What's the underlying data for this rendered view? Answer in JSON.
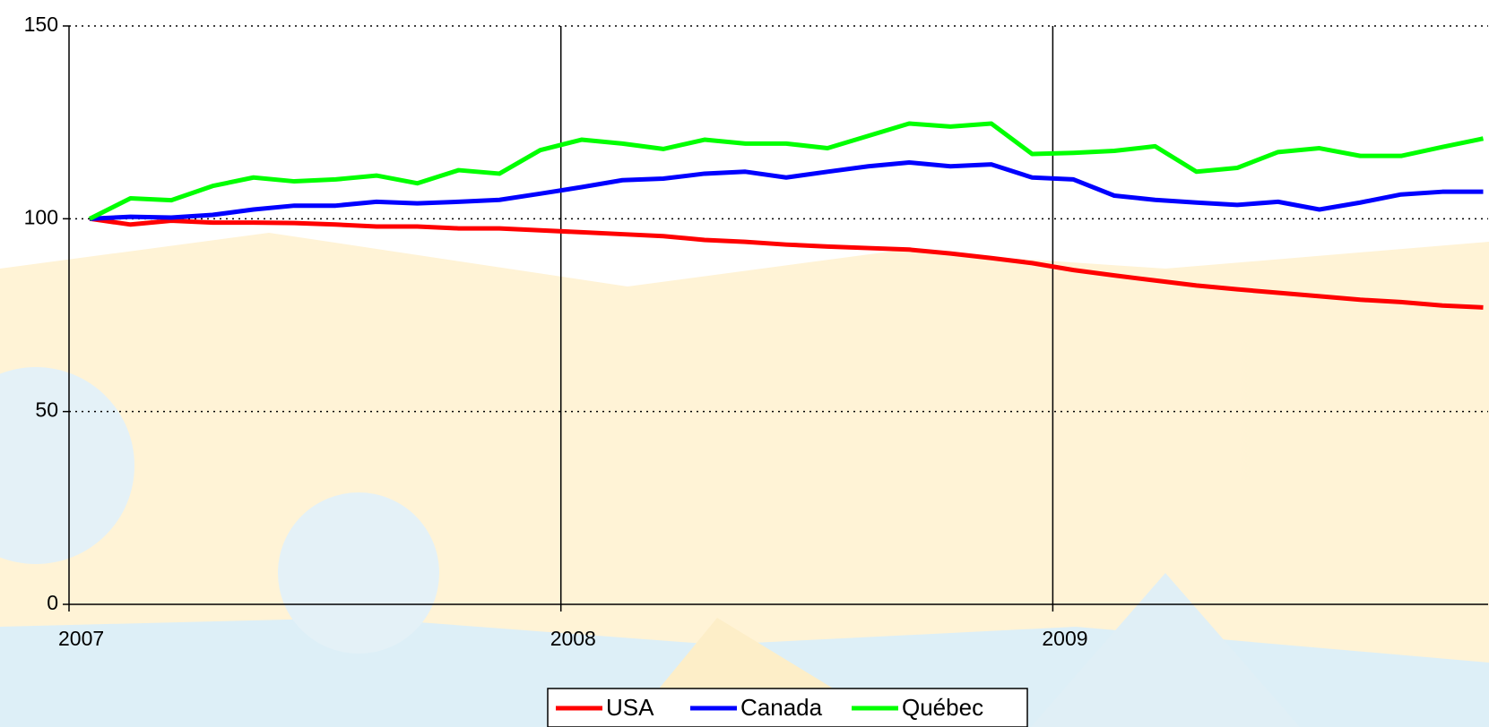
{
  "chart_data": {
    "type": "line",
    "x": [
      2007.042,
      2007.125,
      2007.208,
      2007.292,
      2007.375,
      2007.458,
      2007.542,
      2007.625,
      2007.708,
      2007.792,
      2007.875,
      2007.958,
      2008.042,
      2008.125,
      2008.208,
      2008.292,
      2008.375,
      2008.458,
      2008.542,
      2008.625,
      2008.708,
      2008.792,
      2008.875,
      2008.958,
      2009.042,
      2009.125,
      2009.208,
      2009.292,
      2009.375,
      2009.458,
      2009.542,
      2009.625,
      2009.708,
      2009.792,
      2009.875
    ],
    "series": [
      {
        "name": "USA",
        "color": "#ff0000",
        "values": [
          100,
          98.5,
          99.5,
          99,
          99,
          98.9,
          98.5,
          98,
          98,
          97.5,
          97.5,
          97,
          96.5,
          96,
          95.5,
          94.5,
          94,
          93.3,
          92.8,
          92.4,
          92,
          91,
          89.8,
          88.5,
          86.7,
          85.3,
          84,
          82.7,
          81.7,
          80.8,
          79.9,
          79,
          78.4,
          77.5,
          77
        ]
      },
      {
        "name": "Canada",
        "color": "#0000ff",
        "values": [
          100,
          100.5,
          100.3,
          101,
          102.4,
          103.4,
          103.4,
          104.4,
          104,
          104.4,
          104.9,
          106.5,
          108.2,
          110,
          110.4,
          111.7,
          112.2,
          110.7,
          112.2,
          113.6,
          114.6,
          113.6,
          114.1,
          110.7,
          110.2,
          106,
          104.9,
          104.2,
          103.6,
          104.4,
          102.4,
          104.2,
          106.3,
          107,
          107
        ]
      },
      {
        "name": "Québec",
        "color": "#00ff00",
        "values": [
          100,
          105.3,
          104.8,
          108.5,
          110.7,
          109.7,
          110.2,
          111.2,
          109.2,
          112.6,
          111.7,
          117.8,
          120.5,
          119.5,
          118.1,
          120.5,
          119.5,
          119.5,
          118.3,
          121.5,
          124.7,
          123.9,
          124.7,
          116.8,
          117.1,
          117.6,
          118.8,
          112.2,
          113.2,
          117.3,
          118.3,
          116.3,
          116.3,
          118.6,
          120.8
        ]
      }
    ],
    "xlim": [
      2007,
      2009.885
    ],
    "xticks": [
      2007,
      2008,
      2009
    ],
    "ylim": [
      0,
      150
    ],
    "yticks": [
      0,
      50,
      100,
      150
    ],
    "grid": true,
    "legend": "bottom"
  }
}
